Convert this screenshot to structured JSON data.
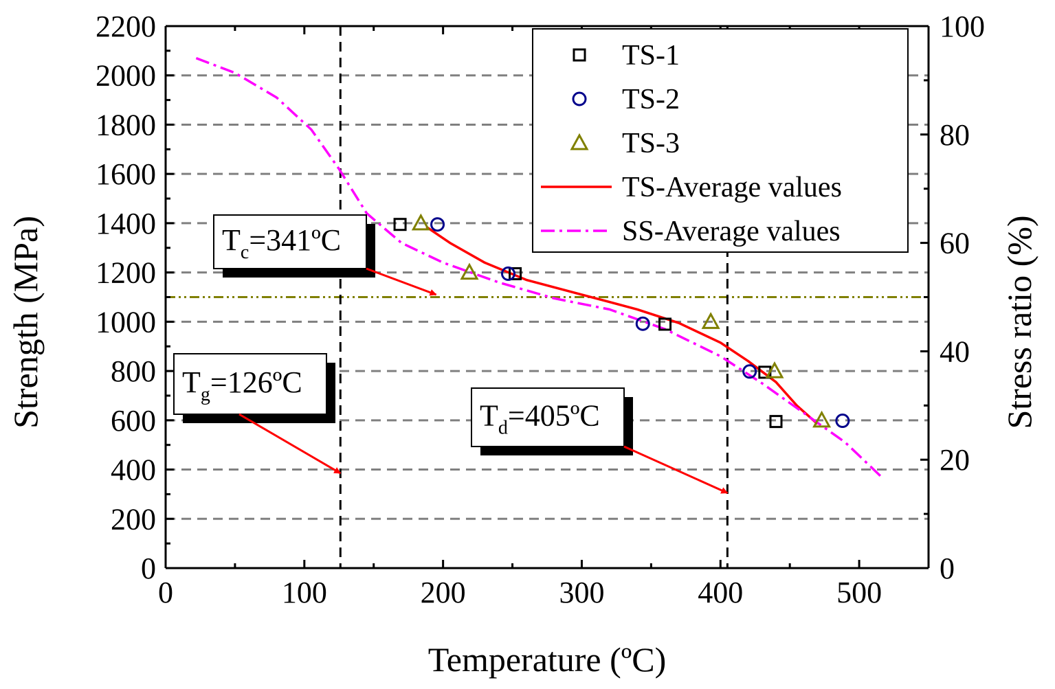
{
  "chart_data": {
    "type": "scatter",
    "xlabel": "Temperature (ºC)",
    "ylabel": "Strength (MPa)",
    "y2label": "Stress ratio (%)",
    "xlim": [
      0,
      550
    ],
    "ylim": [
      0,
      2200
    ],
    "y2lim": [
      0,
      100
    ],
    "x_ticks": [
      0,
      100,
      200,
      300,
      400,
      500
    ],
    "y_ticks": [
      0,
      200,
      400,
      600,
      800,
      1000,
      1200,
      1400,
      1600,
      1800,
      2000,
      2200
    ],
    "y2_ticks": [
      0,
      20,
      40,
      60,
      80,
      100
    ],
    "grid": "horizontal dashed",
    "legend_position": "top-right",
    "series": [
      {
        "name": "TS-1",
        "kind": "marker",
        "marker": "square",
        "color": "#000000",
        "points": [
          [
            169,
            1395
          ],
          [
            252,
            1195
          ],
          [
            360,
            990
          ],
          [
            432,
            795
          ],
          [
            440,
            595
          ]
        ]
      },
      {
        "name": "TS-2",
        "kind": "marker",
        "marker": "circle",
        "color": "#00008b",
        "points": [
          [
            196,
            1395
          ],
          [
            247,
            1195
          ],
          [
            344,
            992
          ],
          [
            421,
            798
          ],
          [
            488,
            598
          ]
        ]
      },
      {
        "name": "TS-3",
        "kind": "marker",
        "marker": "triangle",
        "color": "#808000",
        "points": [
          [
            184,
            1400
          ],
          [
            219,
            1200
          ],
          [
            393,
            1000
          ],
          [
            439,
            800
          ],
          [
            473,
            600
          ]
        ]
      },
      {
        "name": "TS-Average values",
        "kind": "line",
        "style": "solid",
        "color": "#ff0000",
        "points": [
          [
            188,
            1385
          ],
          [
            205,
            1320
          ],
          [
            230,
            1240
          ],
          [
            260,
            1170
          ],
          [
            300,
            1110
          ],
          [
            340,
            1050
          ],
          [
            370,
            995
          ],
          [
            400,
            915
          ],
          [
            420,
            840
          ],
          [
            440,
            755
          ],
          [
            455,
            660
          ],
          [
            470,
            585
          ]
        ]
      },
      {
        "name": "SS-Average values",
        "kind": "line",
        "style": "dashdot",
        "color": "#ff00ff",
        "points": [
          [
            22,
            2070
          ],
          [
            50,
            2010
          ],
          [
            80,
            1910
          ],
          [
            105,
            1780
          ],
          [
            125,
            1620
          ],
          [
            145,
            1440
          ],
          [
            170,
            1320
          ],
          [
            200,
            1240
          ],
          [
            240,
            1160
          ],
          [
            280,
            1095
          ],
          [
            320,
            1050
          ],
          [
            360,
            970
          ],
          [
            400,
            860
          ],
          [
            430,
            750
          ],
          [
            460,
            630
          ],
          [
            490,
            510
          ],
          [
            517,
            365
          ]
        ]
      }
    ],
    "reference_lines": {
      "horizontal": {
        "y": 1100,
        "color": "#808000",
        "style": "dashdot"
      },
      "vertical": [
        126,
        405
      ]
    },
    "annotations": [
      {
        "main": "T",
        "sub": "c",
        "rest": "=341ºC",
        "arrow_to": [
          195,
          1110
        ]
      },
      {
        "main": "T",
        "sub": "g",
        "rest": "=126ºC",
        "arrow_to": [
          126,
          385
        ]
      },
      {
        "main": "T",
        "sub": "d",
        "rest": "=405ºC",
        "arrow_to": [
          405,
          305
        ]
      }
    ]
  }
}
